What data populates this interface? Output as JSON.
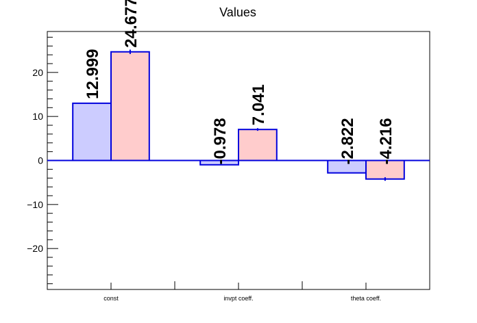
{
  "chart_data": {
    "type": "bar",
    "title": "Values",
    "xlabel": "",
    "ylabel": "",
    "categories": [
      "const",
      "invpt coeff.",
      "theta coeff."
    ],
    "series": [
      {
        "values": [
          12.999,
          -0.978,
          -2.822
        ],
        "errors": [
          0,
          0,
          0
        ],
        "color": "#ccccff"
      },
      {
        "values": [
          24.677,
          7.041,
          -4.216
        ],
        "errors": [
          0.5,
          0.3,
          0.4
        ],
        "color": "#ffcccc"
      }
    ],
    "data_labels": [
      [
        "12.999",
        "-0.978",
        "-2.822"
      ],
      [
        "24.677",
        "7.041",
        "-4.216"
      ]
    ],
    "ylim": [
      -29.3,
      29.3
    ],
    "yticks": [
      -20,
      -10,
      0,
      10,
      20
    ],
    "ytick_labels": [
      "−20",
      "−10",
      "0",
      "10",
      "20"
    ],
    "bar_edge_color": "#0000dd",
    "grid": false,
    "legend": "none"
  }
}
